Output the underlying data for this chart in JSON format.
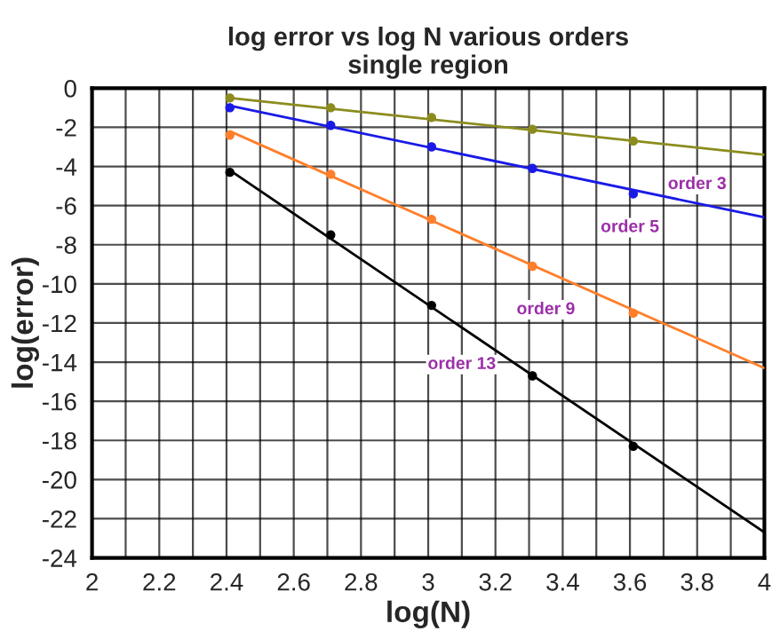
{
  "chart_data": {
    "type": "scatter",
    "title": "log error vs log N various orders\nsingle region",
    "xlabel": "log(N)",
    "ylabel": "log(error)",
    "xlim": [
      2,
      4
    ],
    "ylim": [
      -24,
      0
    ],
    "xticks": [
      2,
      {
        "value": 2.1,
        "label": null
      },
      2.2,
      {
        "value": 2.3,
        "label": null
      },
      2.4,
      {
        "value": 2.5,
        "label": null
      },
      2.6,
      {
        "value": 2.7,
        "label": null
      },
      2.8,
      {
        "value": 2.9,
        "label": null
      },
      3,
      {
        "value": 3.1,
        "label": null
      },
      3.2,
      {
        "value": 3.3,
        "label": null
      },
      3.4,
      {
        "value": 3.5,
        "label": null
      },
      3.6,
      {
        "value": 3.7,
        "label": null
      },
      3.8,
      {
        "value": 3.9,
        "label": null
      },
      4
    ],
    "yticks": [
      -24,
      -22,
      -20,
      -18,
      -16,
      -14,
      -12,
      -10,
      -8,
      -6,
      -4,
      -2,
      0
    ],
    "grid": true,
    "marker": "circle",
    "series": [
      {
        "color": "#8c8c1e",
        "x": [
          2.41,
          2.71,
          3.01,
          3.31,
          3.61
        ],
        "values": [
          -0.5,
          -1.0,
          -1.5,
          -2.1,
          -2.7
        ]
      },
      {
        "type": "line",
        "marker": "none",
        "color": "#8c8c1e",
        "x": [
          2.41,
          4
        ],
        "values": [
          -0.5,
          -3.4
        ]
      },
      {
        "color": "#1a1ae6",
        "x": [
          2.41,
          2.71,
          3.01,
          3.31,
          3.61
        ],
        "values": [
          -1.0,
          -1.9,
          -3.0,
          -4.1,
          -5.4
        ]
      },
      {
        "type": "line",
        "marker": "none",
        "color": "#1a1ae6",
        "x": [
          2.41,
          4
        ],
        "values": [
          -0.9,
          -6.6
        ]
      },
      {
        "color": "#ff7f2a",
        "x": [
          2.41,
          2.71,
          3.01,
          3.31,
          3.61
        ],
        "values": [
          -2.4,
          -4.4,
          -6.7,
          -9.1,
          -11.5
        ]
      },
      {
        "type": "line",
        "marker": "none",
        "color": "#ff7f2a",
        "x": [
          2.41,
          4
        ],
        "values": [
          -2.2,
          -14.3
        ]
      },
      {
        "color": "#000000",
        "x": [
          2.41,
          2.71,
          3.01,
          3.31,
          3.61
        ],
        "values": [
          -4.3,
          -7.5,
          -11.1,
          -14.7,
          -18.3
        ]
      },
      {
        "type": "line",
        "marker": "none",
        "color": "#000000",
        "x": [
          2.41,
          4
        ],
        "values": [
          -4.2,
          -22.7
        ]
      }
    ],
    "annotations": [
      {
        "text": "order 3",
        "x": 3.8,
        "y": -3.0
      },
      {
        "text": "order 5",
        "x": 3.6,
        "y": -5.2
      },
      {
        "text": "order 9",
        "x": 3.35,
        "y": -9.4
      },
      {
        "text": "order 13",
        "x": 3.1,
        "y": -12.2
      }
    ]
  }
}
